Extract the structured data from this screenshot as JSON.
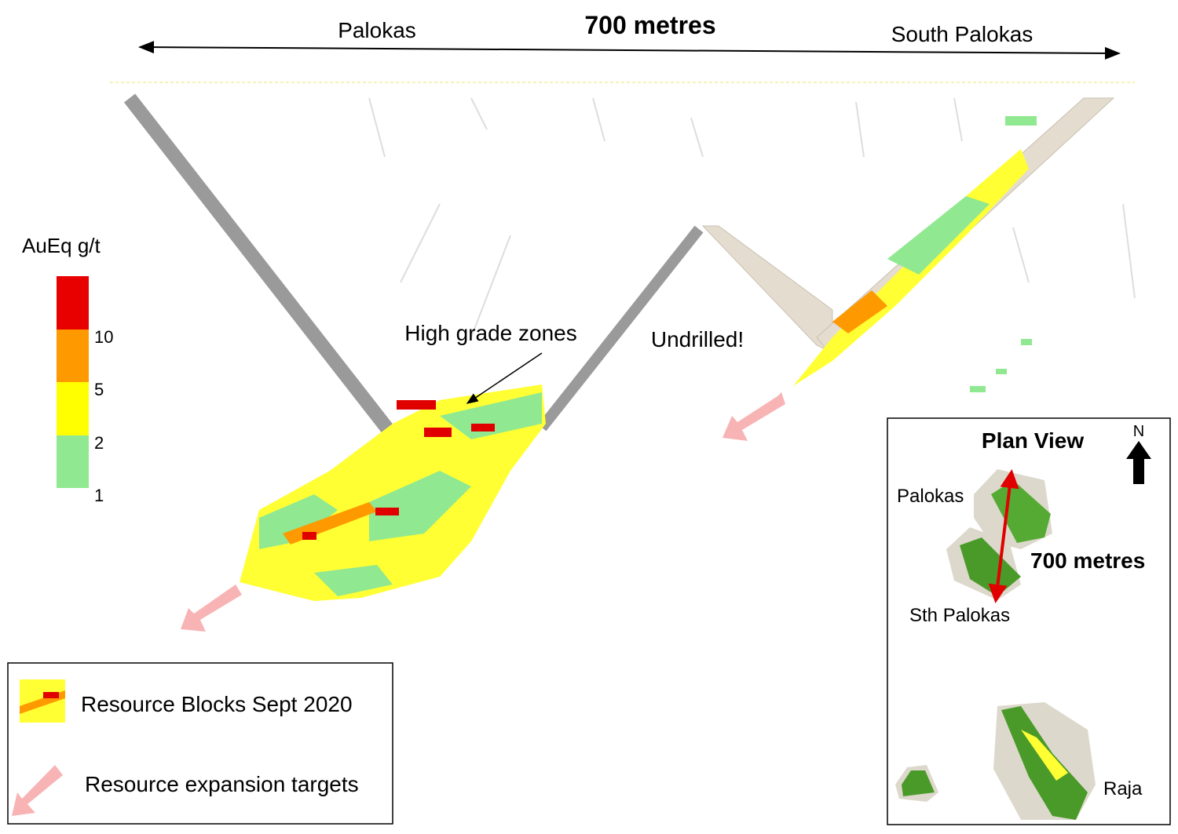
{
  "header": {
    "title": "700 metres",
    "left_label": "Palokas",
    "right_label": "South Palokas"
  },
  "legend_scale": {
    "title": "AuEq g/t",
    "labels": [
      10,
      5,
      2,
      1
    ]
  },
  "annotations": [
    "High grade zones",
    "Undrilled!"
  ],
  "legend": {
    "items": [
      "Resource Blocks Sept 2020",
      "Resource expansion targets"
    ]
  },
  "inset": {
    "title": "Plan View",
    "north": "N",
    "labels": [
      "Palokas",
      "700 metres",
      "Sth Palokas",
      "Raja"
    ]
  }
}
